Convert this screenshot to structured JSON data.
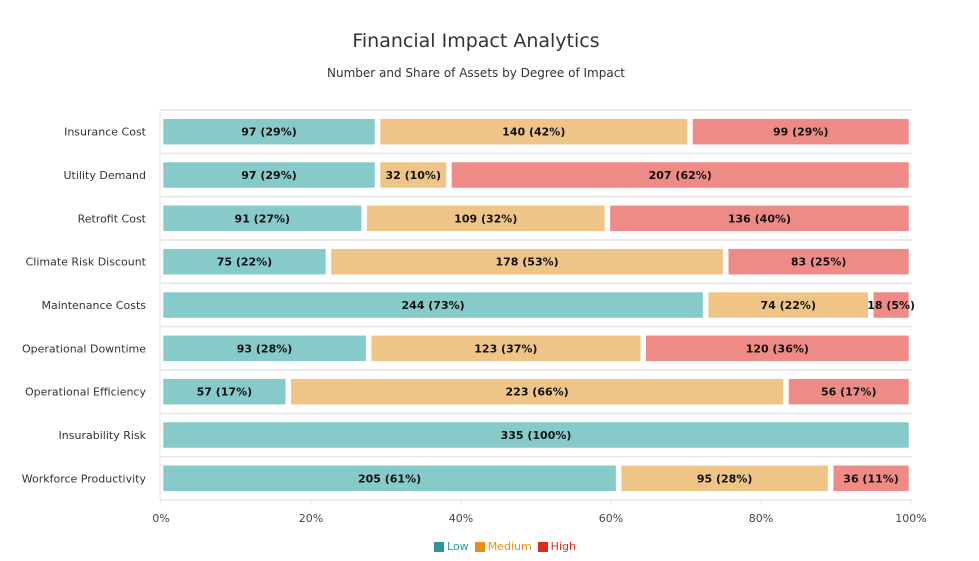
{
  "chart_data": {
    "type": "bar",
    "orientation": "horizontal",
    "stacked": "percent",
    "title": "Financial Impact Analytics",
    "subtitle": "Number and Share of Assets by Degree of Impact",
    "xlabel": "",
    "ylabel": "",
    "xlim": [
      0,
      100
    ],
    "x_ticks": [
      "0%",
      "20%",
      "40%",
      "60%",
      "80%",
      "100%"
    ],
    "x_tick_values": [
      0,
      20,
      40,
      60,
      80,
      100
    ],
    "grid": true,
    "legend_position": "bottom-center",
    "categories": [
      "Insurance Cost",
      "Utility Demand",
      "Retrofit Cost",
      "Climate Risk Discount",
      "Maintenance Costs",
      "Operational Downtime",
      "Operational Efficiency",
      "Insurability Risk",
      "Workforce Productivity"
    ],
    "series": [
      {
        "name": "Low",
        "color": "#87CACA",
        "legend_color": "#2A9999",
        "values": [
          97,
          97,
          91,
          75,
          244,
          93,
          57,
          335,
          205
        ],
        "percents": [
          29,
          29,
          27,
          22,
          73,
          28,
          17,
          100,
          61
        ]
      },
      {
        "name": "Medium",
        "color": "#EFC587",
        "legend_color": "#E8900F",
        "values": [
          140,
          32,
          109,
          178,
          74,
          123,
          223,
          0,
          95
        ],
        "percents": [
          42,
          10,
          32,
          53,
          22,
          37,
          66,
          0,
          28
        ]
      },
      {
        "name": "High",
        "color": "#EF8B87",
        "legend_color": "#E02A1E",
        "values": [
          99,
          207,
          136,
          83,
          18,
          120,
          56,
          0,
          36
        ],
        "percents": [
          29,
          62,
          40,
          25,
          5,
          36,
          17,
          0,
          11
        ]
      }
    ]
  }
}
